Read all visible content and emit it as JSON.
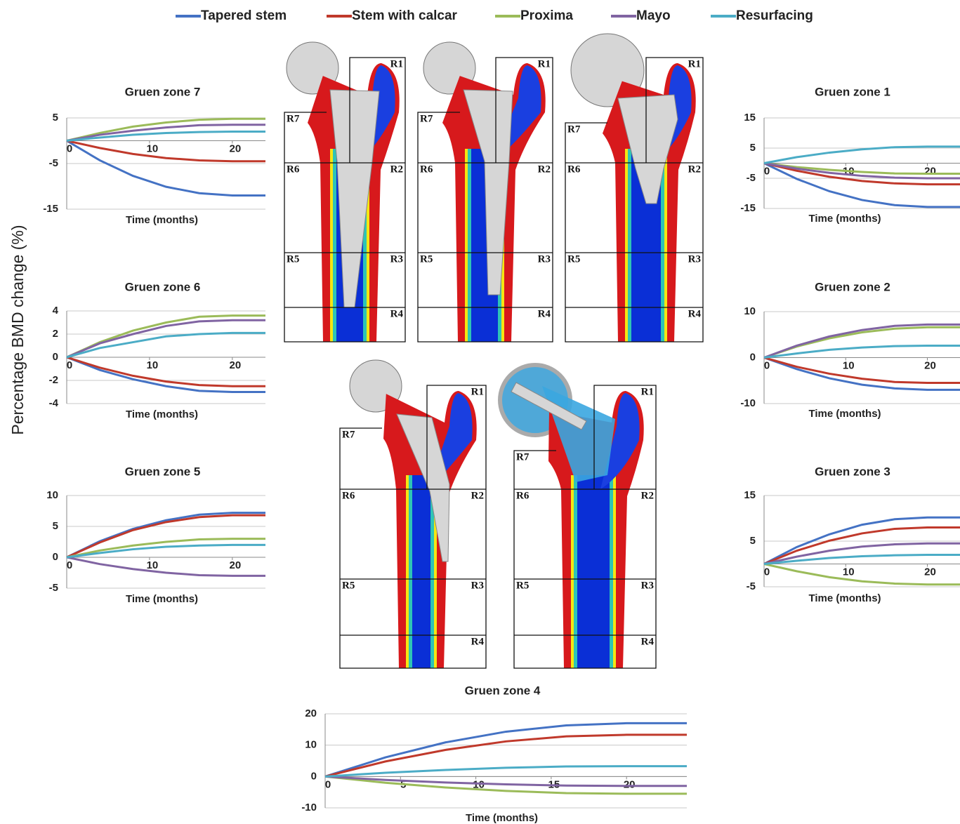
{
  "legend": [
    {
      "name": "Tapered stem",
      "color": "#4472c4"
    },
    {
      "name": "Stem with calcar",
      "color": "#c0392b"
    },
    {
      "name": "Proxima",
      "color": "#9bbb59"
    },
    {
      "name": "Mayo",
      "color": "#8064a2"
    },
    {
      "name": "Resurfacing",
      "color": "#4bacc6"
    }
  ],
  "y_label": "Percentage BMD change (%)",
  "chart_data": [
    {
      "type": "line",
      "title": "Gruen zone 7",
      "x_label": "Time (months)",
      "x": [
        0,
        4,
        8,
        12,
        16,
        20,
        24
      ],
      "xlim": [
        0,
        24
      ],
      "xticks": [
        0,
        10,
        20
      ],
      "ylim": [
        -15,
        5
      ],
      "yticks": [
        5,
        -5,
        -15
      ],
      "grid": true,
      "series": [
        {
          "values": [
            0,
            -4.3,
            -7.7,
            -10.1,
            -11.5,
            -12,
            -12
          ]
        },
        {
          "values": [
            0,
            -1.6,
            -2.9,
            -3.8,
            -4.3,
            -4.5,
            -4.5
          ]
        },
        {
          "values": [
            0,
            1.7,
            3.1,
            4,
            4.6,
            4.8,
            4.8
          ]
        },
        {
          "values": [
            0,
            1.3,
            2.2,
            2.9,
            3.4,
            3.5,
            3.5
          ]
        },
        {
          "values": [
            0,
            0.7,
            1.3,
            1.7,
            1.9,
            2,
            2
          ]
        }
      ]
    },
    {
      "type": "line",
      "title": "Gruen zone 6",
      "x_label": "Time (months)",
      "x": [
        0,
        4,
        8,
        12,
        16,
        20,
        24
      ],
      "xlim": [
        0,
        24
      ],
      "xticks": [
        0,
        10,
        20
      ],
      "ylim": [
        -4,
        4
      ],
      "yticks": [
        4,
        2,
        0,
        -2,
        -4
      ],
      "grid": true,
      "series": [
        {
          "values": [
            0,
            -1.1,
            -1.9,
            -2.5,
            -2.9,
            -3,
            -3
          ]
        },
        {
          "values": [
            0,
            -0.9,
            -1.6,
            -2.1,
            -2.4,
            -2.5,
            -2.5
          ]
        },
        {
          "values": [
            0,
            1.3,
            2.3,
            3,
            3.5,
            3.6,
            3.6
          ]
        },
        {
          "values": [
            0,
            1.2,
            2,
            2.7,
            3.1,
            3.2,
            3.2
          ]
        },
        {
          "values": [
            0,
            0.8,
            1.3,
            1.8,
            2,
            2.1,
            2.1
          ]
        }
      ]
    },
    {
      "type": "line",
      "title": "Gruen zone 5",
      "x_label": "Time (months)",
      "x": [
        0,
        4,
        8,
        12,
        16,
        20,
        24
      ],
      "xlim": [
        0,
        24
      ],
      "xticks": [
        0,
        10,
        20
      ],
      "ylim": [
        -5,
        10
      ],
      "yticks": [
        10,
        5,
        0,
        -5
      ],
      "grid": true,
      "series": [
        {
          "values": [
            0,
            2.6,
            4.6,
            6,
            6.9,
            7.2,
            7.2
          ]
        },
        {
          "values": [
            0,
            2.4,
            4.4,
            5.7,
            6.5,
            6.8,
            6.8
          ]
        },
        {
          "values": [
            0,
            1.1,
            1.9,
            2.5,
            2.9,
            3,
            3
          ]
        },
        {
          "values": [
            0,
            -1.1,
            -1.9,
            -2.5,
            -2.9,
            -3,
            -3
          ]
        },
        {
          "values": [
            0,
            0.7,
            1.3,
            1.7,
            1.9,
            2,
            2
          ]
        }
      ]
    },
    {
      "type": "line",
      "title": "Gruen zone 1",
      "x_label": "Time (months)",
      "x": [
        0,
        4,
        8,
        12,
        16,
        20,
        24
      ],
      "xlim": [
        0,
        24
      ],
      "xticks": [
        0,
        10,
        20
      ],
      "ylim": [
        -15,
        15
      ],
      "yticks": [
        15,
        5,
        -5,
        -15
      ],
      "grid": true,
      "series": [
        {
          "values": [
            0,
            -5.2,
            -9.3,
            -12.2,
            -13.9,
            -14.5,
            -14.5
          ]
        },
        {
          "values": [
            0,
            -2.5,
            -4.5,
            -5.9,
            -6.7,
            -7,
            -7
          ]
        },
        {
          "values": [
            0,
            -1.3,
            -2.2,
            -2.9,
            -3.4,
            -3.5,
            -3.5
          ]
        },
        {
          "values": [
            0,
            -1.8,
            -3.2,
            -4.2,
            -4.8,
            -5,
            -5
          ]
        },
        {
          "values": [
            0,
            2,
            3.5,
            4.6,
            5.3,
            5.5,
            5.5
          ]
        }
      ]
    },
    {
      "type": "line",
      "title": "Gruen zone 2",
      "x_label": "Time (months)",
      "x": [
        0,
        4,
        8,
        12,
        16,
        20,
        24
      ],
      "xlim": [
        0,
        24
      ],
      "xticks": [
        0,
        10,
        20
      ],
      "ylim": [
        -10,
        10
      ],
      "yticks": [
        10,
        0,
        -10
      ],
      "grid": true,
      "series": [
        {
          "values": [
            0,
            -2.5,
            -4.5,
            -5.9,
            -6.7,
            -7,
            -7
          ]
        },
        {
          "values": [
            0,
            -2,
            -3.5,
            -4.6,
            -5.3,
            -5.5,
            -5.5
          ]
        },
        {
          "values": [
            0,
            2.4,
            4.2,
            5.5,
            6.3,
            6.6,
            6.6
          ]
        },
        {
          "values": [
            0,
            2.6,
            4.6,
            6,
            6.9,
            7.2,
            7.2
          ]
        },
        {
          "values": [
            0,
            0.9,
            1.7,
            2.2,
            2.5,
            2.6,
            2.6
          ]
        }
      ]
    },
    {
      "type": "line",
      "title": "Gruen zone 3",
      "x_label": "Time (months)",
      "x": [
        0,
        4,
        8,
        12,
        16,
        20,
        24
      ],
      "xlim": [
        0,
        24
      ],
      "xticks": [
        0,
        10,
        20
      ],
      "ylim": [
        -5,
        15
      ],
      "yticks": [
        15,
        5,
        -5
      ],
      "grid": true,
      "series": [
        {
          "values": [
            0,
            3.7,
            6.5,
            8.6,
            9.8,
            10.2,
            10.2
          ]
        },
        {
          "values": [
            0,
            2.9,
            5.1,
            6.7,
            7.7,
            8,
            8
          ]
        },
        {
          "values": [
            0,
            -1.6,
            -2.9,
            -3.8,
            -4.3,
            -4.5,
            -4.5
          ]
        },
        {
          "values": [
            0,
            1.6,
            2.9,
            3.8,
            4.3,
            4.5,
            4.5
          ]
        },
        {
          "values": [
            0,
            0.7,
            1.3,
            1.7,
            1.9,
            2,
            2
          ]
        }
      ]
    },
    {
      "type": "line",
      "title": "Gruen zone 4",
      "x_label": "Time (months)",
      "x": [
        0,
        4,
        8,
        12,
        16,
        20,
        24
      ],
      "xlim": [
        0,
        24
      ],
      "xticks": [
        0,
        5,
        10,
        15,
        20
      ],
      "ylim": [
        -10,
        20
      ],
      "yticks": [
        20,
        10,
        0,
        -10
      ],
      "grid": true,
      "series": [
        {
          "values": [
            0,
            6.1,
            10.9,
            14.3,
            16.3,
            17,
            17
          ]
        },
        {
          "values": [
            0,
            4.8,
            8.5,
            11.2,
            12.8,
            13.3,
            13.3
          ]
        },
        {
          "values": [
            0,
            -2,
            -3.5,
            -4.6,
            -5.3,
            -5.5,
            -5.5
          ]
        },
        {
          "values": [
            0,
            -1.1,
            -1.9,
            -2.5,
            -2.9,
            -3,
            -3
          ]
        },
        {
          "values": [
            0,
            1.2,
            2.1,
            2.8,
            3.2,
            3.3,
            3.3
          ]
        }
      ]
    }
  ],
  "femur_models": [
    {
      "regions": [
        "R1",
        "R2",
        "R3",
        "R4",
        "R5",
        "R6",
        "R7"
      ]
    },
    {
      "regions": [
        "R1",
        "R2",
        "R3",
        "R4",
        "R5",
        "R6",
        "R7"
      ]
    },
    {
      "regions": [
        "R1",
        "R2",
        "R3",
        "R4",
        "R5",
        "R6",
        "R7"
      ]
    },
    {
      "regions": [
        "R1",
        "R2",
        "R3",
        "R4",
        "R5",
        "R6",
        "R7"
      ]
    },
    {
      "regions": [
        "R1",
        "R2",
        "R3",
        "R4",
        "R5",
        "R6",
        "R7"
      ]
    }
  ]
}
